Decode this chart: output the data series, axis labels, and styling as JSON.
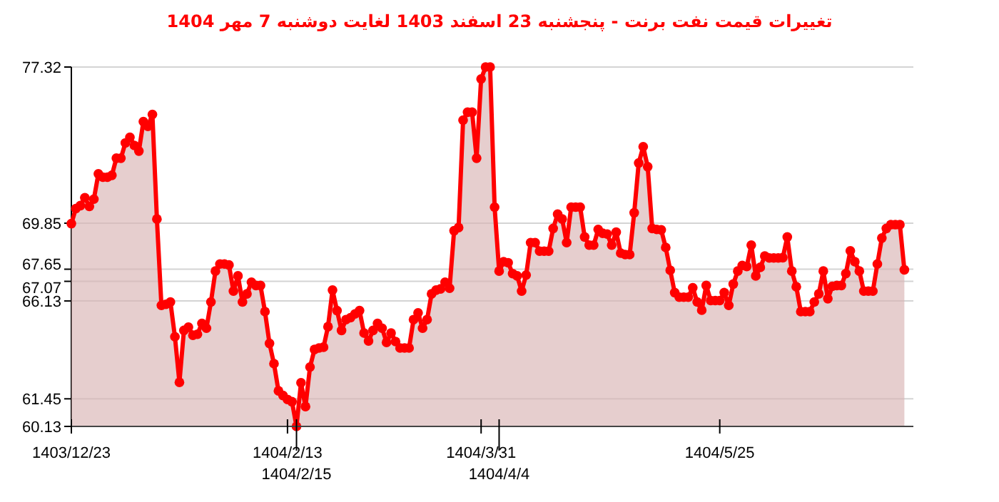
{
  "chart_data": {
    "type": "area",
    "title": "تغییرات قیمت نفت برنت - پنجشنبه 23 اسفند 1403 لغایت دوشنبه 7 مهر 1404",
    "color": "#ff0000",
    "marker": "circle",
    "grid": "y",
    "categories": [
      "1403/12/23",
      null,
      null,
      null,
      null,
      null,
      null,
      null,
      null,
      null,
      null,
      null,
      null,
      null,
      null,
      null,
      null,
      null,
      null,
      null,
      null,
      null,
      null,
      null,
      null,
      null,
      null,
      null,
      null,
      null,
      null,
      null,
      null,
      null,
      null,
      null,
      null,
      null,
      null,
      null,
      null,
      null,
      null,
      null,
      null,
      null,
      null,
      null,
      "1404/2/13",
      null,
      "1404/2/15",
      null,
      null,
      null,
      null,
      null,
      null,
      null,
      null,
      null,
      null,
      null,
      null,
      null,
      null,
      null,
      null,
      null,
      null,
      null,
      null,
      null,
      null,
      null,
      null,
      null,
      null,
      null,
      null,
      null,
      null,
      null,
      null,
      null,
      null,
      null,
      null,
      null,
      null,
      null,
      null,
      "1404/3/31",
      null,
      null,
      null,
      "1404/4/4",
      null,
      null,
      null,
      null,
      null,
      null,
      null,
      null,
      null,
      null,
      null,
      null,
      null,
      null,
      null,
      null,
      null,
      null,
      null,
      null,
      null,
      null,
      null,
      null,
      null,
      null,
      null,
      null,
      null,
      null,
      null,
      null,
      null,
      null,
      null,
      null,
      null,
      null,
      null,
      null,
      null,
      null,
      null,
      null,
      null,
      null,
      null,
      null,
      "1404/5/25",
      null,
      null,
      null,
      null,
      null,
      null,
      null,
      null,
      null,
      null,
      null,
      null,
      null,
      null,
      null,
      null,
      null,
      null,
      null,
      null,
      null,
      null,
      null,
      null,
      null,
      null,
      null,
      null,
      null,
      null,
      null,
      null,
      null,
      null,
      null,
      null,
      null,
      null,
      null,
      null,
      null
    ],
    "values": [
      69.83,
      70.55,
      70.69,
      71.07,
      70.65,
      71.0,
      72.21,
      72.05,
      72.05,
      72.14,
      72.96,
      72.96,
      73.69,
      73.96,
      73.57,
      73.3,
      74.71,
      74.48,
      75.05,
      70.05,
      65.92,
      65.97,
      66.08,
      64.42,
      62.24,
      64.72,
      64.88,
      64.49,
      64.54,
      65.06,
      64.83,
      66.08,
      67.56,
      67.9,
      67.9,
      67.85,
      66.6,
      67.33,
      66.08,
      66.47,
      67.03,
      66.87,
      66.87,
      65.62,
      64.1,
      63.13,
      61.83,
      61.61,
      61.42,
      61.31,
      60.13,
      62.22,
      61.08,
      62.97,
      63.81,
      63.88,
      63.92,
      64.9,
      66.65,
      65.67,
      64.72,
      65.24,
      65.33,
      65.51,
      65.67,
      64.6,
      64.22,
      64.72,
      65.06,
      64.83,
      64.15,
      64.6,
      64.19,
      63.88,
      63.88,
      63.88,
      65.24,
      65.56,
      64.83,
      65.24,
      66.47,
      66.65,
      66.71,
      67.03,
      66.74,
      69.49,
      69.64,
      74.78,
      75.16,
      75.16,
      72.96,
      76.75,
      77.32,
      77.32,
      70.62,
      67.56,
      68.01,
      67.96,
      67.44,
      67.33,
      66.6,
      67.37,
      68.92,
      68.92,
      68.51,
      68.51,
      68.51,
      69.6,
      70.28,
      70.05,
      68.92,
      70.62,
      70.62,
      70.62,
      69.19,
      68.8,
      68.8,
      69.55,
      69.37,
      69.33,
      68.8,
      69.42,
      68.42,
      68.35,
      68.35,
      70.35,
      72.73,
      73.51,
      72.55,
      69.6,
      69.55,
      69.53,
      68.69,
      67.6,
      66.53,
      66.31,
      66.31,
      66.31,
      66.76,
      66.08,
      65.69,
      66.87,
      66.15,
      66.15,
      66.15,
      66.53,
      65.92,
      66.94,
      67.56,
      67.83,
      67.78,
      68.8,
      67.33,
      67.74,
      68.28,
      68.19,
      68.19,
      68.19,
      68.2,
      69.19,
      67.56,
      66.81,
      65.62,
      65.62,
      65.62,
      66.08,
      66.47,
      67.56,
      66.24,
      66.83,
      66.87,
      66.87,
      67.44,
      68.53,
      68.01,
      67.56,
      66.6,
      66.6,
      66.6,
      67.9,
      69.14,
      69.6,
      69.78,
      69.78,
      69.78,
      67.62
    ],
    "ylim": [
      60.13,
      77.32
    ],
    "yticks": [
      60.13,
      61.45,
      66.13,
      67.07,
      67.65,
      69.85,
      77.32
    ]
  }
}
